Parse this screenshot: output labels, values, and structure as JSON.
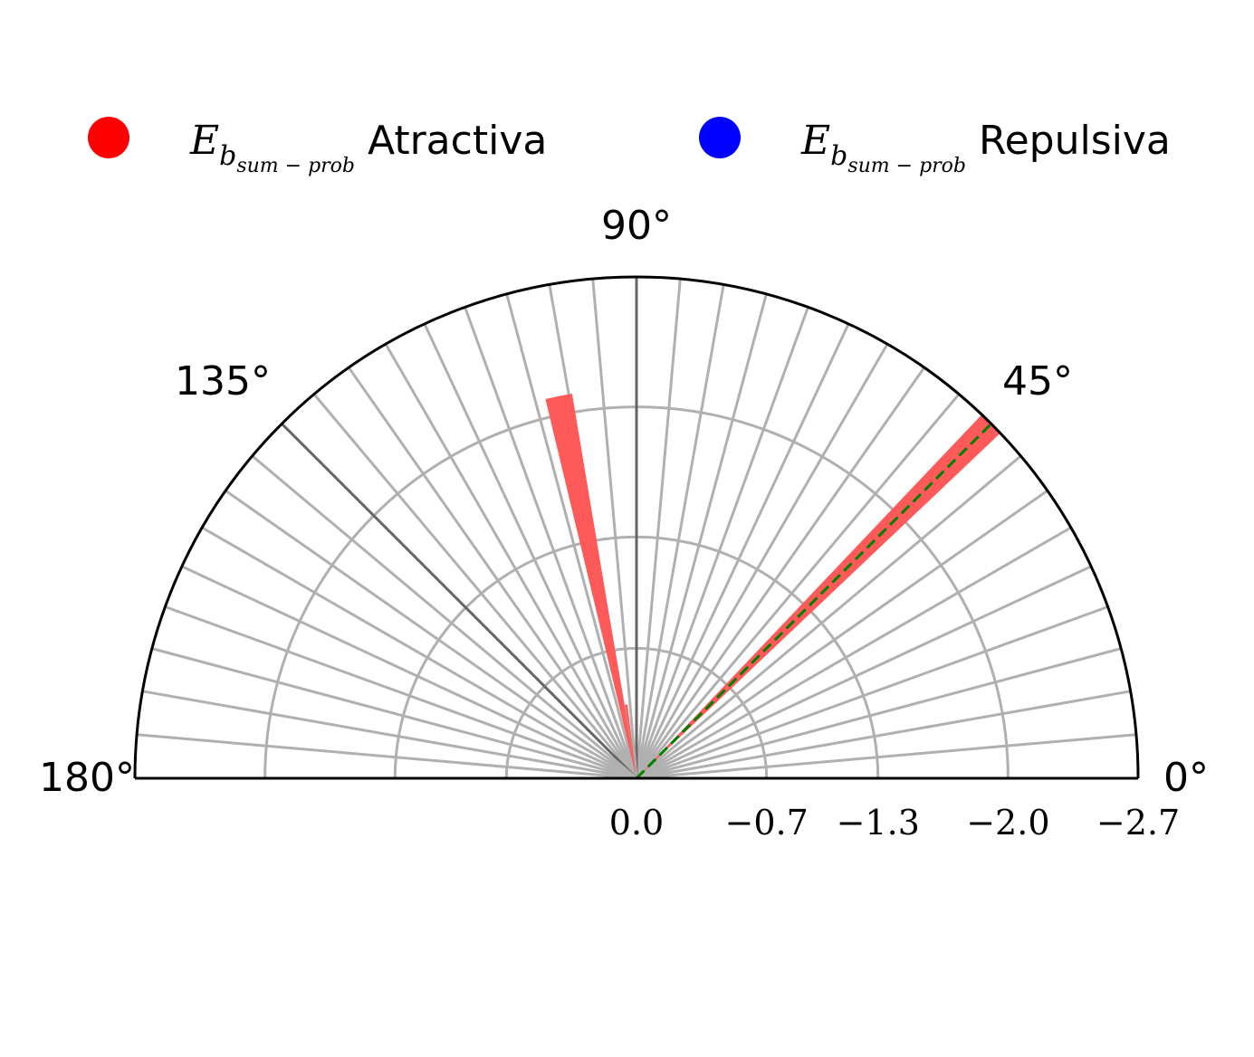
{
  "chart_data": {
    "type": "polar-bar",
    "angle_range_deg": [
      0,
      180
    ],
    "angle_ticks": [
      {
        "deg": 0,
        "label": "0°"
      },
      {
        "deg": 45,
        "label": "45°"
      },
      {
        "deg": 90,
        "label": "90°"
      },
      {
        "deg": 135,
        "label": "135°"
      },
      {
        "deg": 180,
        "label": "180°"
      }
    ],
    "radial_axis": {
      "min": 0.0,
      "max": -2.7,
      "ticks": [
        {
          "value": 0.0,
          "label": "0.0"
        },
        {
          "value": -0.7,
          "label": "−0.7"
        },
        {
          "value": -1.3,
          "label": "−1.3"
        },
        {
          "value": -2.0,
          "label": "−2.0"
        },
        {
          "value": -2.7,
          "label": "−2.7"
        }
      ]
    },
    "angular_grid_step_deg": 5,
    "highlight_grid_deg": [
      90,
      135
    ],
    "grid": true,
    "legend": {
      "placement": "top",
      "entries": [
        {
          "symbol": "E",
          "subscript": "b",
          "subsubscript": "sum − prob",
          "label": "Atractiva",
          "color": "#ff0000"
        },
        {
          "symbol": "E",
          "subscript": "b",
          "subsubscript": "sum − prob",
          "label": "Repulsiva",
          "color": "#0000ff"
        }
      ]
    },
    "series": [
      {
        "name": "Atractiva",
        "color": "#ff5a5a",
        "bars": [
          {
            "angle_start_deg": 43.5,
            "angle_end_deg": 46.5,
            "r": -2.7
          },
          {
            "angle_start_deg": 99.5,
            "angle_end_deg": 103.5,
            "r": -2.1
          },
          {
            "angle_start_deg": 97.0,
            "angle_end_deg": 99.0,
            "r": -0.4
          }
        ]
      }
    ],
    "reference_line": {
      "angle_deg": 45,
      "r": -2.7,
      "color": "#008000",
      "style": "dashed"
    }
  }
}
